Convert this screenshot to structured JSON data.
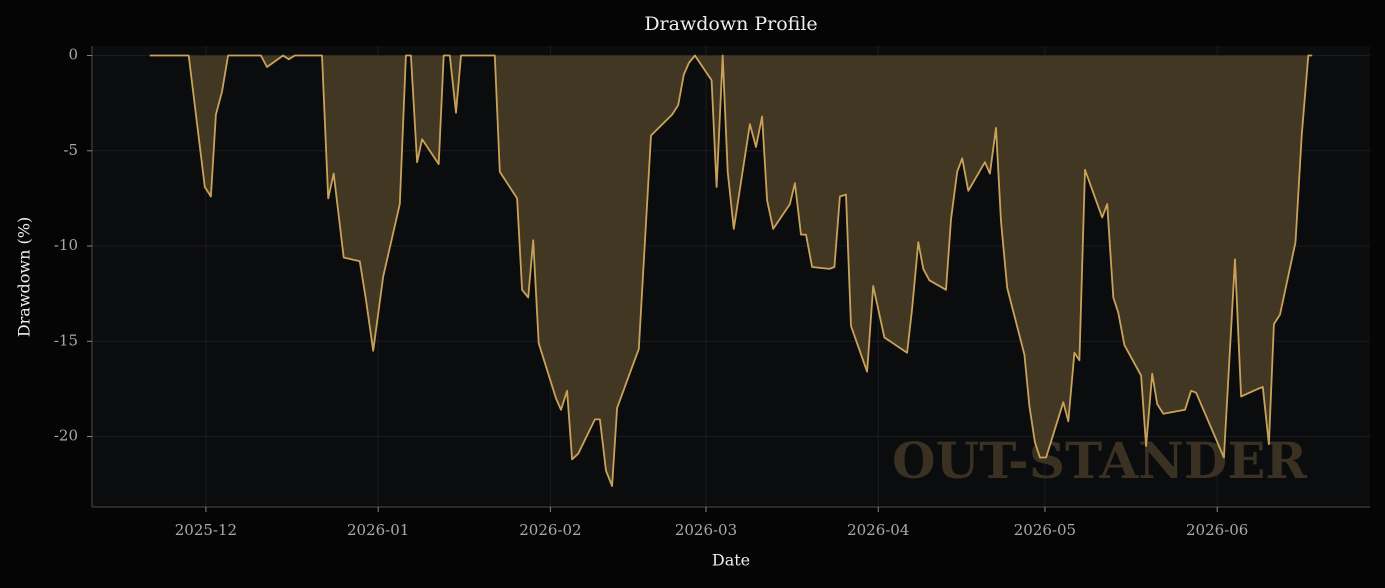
{
  "chart_data": {
    "type": "area",
    "title": "Drawdown Profile",
    "xlabel": "Date",
    "ylabel": "Drawdown (%)",
    "watermark": "OUT-STANDER",
    "color": "#c9a25a",
    "fill_color": "#463a25",
    "grid": true,
    "xlim": [
      -20.5,
      209.5
    ],
    "xticks": [
      {
        "value": 0,
        "label": "2025-12"
      },
      {
        "value": 31,
        "label": "2026-01"
      },
      {
        "value": 62,
        "label": "2026-02"
      },
      {
        "value": 90,
        "label": "2026-03"
      },
      {
        "value": 121,
        "label": "2026-04"
      },
      {
        "value": 151,
        "label": "2026-05"
      },
      {
        "value": 182,
        "label": "2026-06"
      }
    ],
    "ylim": [
      -23.7,
      0.5
    ],
    "yticks": [
      0,
      -5,
      -10,
      -15,
      -20
    ],
    "x": [
      -10.1,
      -3.1,
      -0.2,
      0.9,
      1.8,
      2.9,
      4.0,
      9.9,
      11.0,
      13.9,
      14.9,
      16.0,
      20.9,
      22.0,
      23.0,
      24.8,
      27.7,
      28.8,
      30.1,
      31.9,
      34.9,
      36.0,
      36.9,
      38.0,
      38.9,
      41.9,
      42.8,
      43.9,
      45.0,
      45.9,
      52.0,
      52.9,
      56.0,
      56.9,
      58.0,
      58.9,
      59.9,
      63.0,
      63.9,
      65.0,
      65.9,
      67.0,
      70.0,
      70.9,
      72.0,
      73.1,
      74.0,
      77.9,
      80.1,
      83.9,
      85.0,
      86.0,
      86.9,
      88.0,
      91.0,
      91.9,
      93.0,
      93.9,
      95.0,
      97.9,
      99.0,
      100.1,
      101.0,
      102.1,
      105.1,
      106.0,
      107.1,
      108.0,
      109.1,
      112.2,
      113.1,
      114.1,
      115.2,
      116.1,
      119.0,
      120.1,
      122.1,
      126.2,
      127.1,
      128.2,
      129.1,
      130.2,
      133.2,
      134.1,
      135.2,
      136.1,
      137.2,
      140.2,
      141.1,
      142.2,
      143.1,
      144.2,
      147.3,
      148.2,
      149.2,
      150.1,
      151.2,
      154.3,
      155.2,
      156.3,
      157.2,
      158.2,
      161.3,
      162.2,
      163.3,
      164.2,
      165.3,
      168.3,
      169.2,
      170.3,
      171.2,
      172.3,
      176.2,
      177.3,
      178.2,
      183.2,
      185.2,
      186.3,
      189.3,
      190.2,
      191.3,
      192.2,
      193.3,
      196.1,
      197.2,
      198.4,
      199.1
    ],
    "values": [
      0,
      0,
      -6.9,
      -7.4,
      -3.1,
      -1.9,
      0,
      0,
      -0.6,
      0,
      -0.2,
      0,
      0,
      -7.5,
      -6.2,
      -10.6,
      -10.8,
      -12.8,
      -15.5,
      -11.6,
      -7.8,
      0,
      0,
      -5.6,
      -4.4,
      -5.7,
      0,
      0,
      -3.0,
      0,
      0,
      -6.1,
      -7.5,
      -12.3,
      -12.7,
      -9.7,
      -15.1,
      -18.0,
      -18.6,
      -17.6,
      -21.2,
      -20.9,
      -19.1,
      -19.1,
      -21.8,
      -22.6,
      -18.5,
      -15.4,
      -4.2,
      -3.1,
      -2.6,
      -1.0,
      -0.4,
      0,
      -1.3,
      -6.9,
      0,
      -6.1,
      -9.1,
      -3.6,
      -4.8,
      -3.2,
      -7.6,
      -9.1,
      -7.8,
      -6.7,
      -9.4,
      -9.4,
      -11.1,
      -11.2,
      -11.1,
      -7.4,
      -7.3,
      -14.2,
      -16.6,
      -12.1,
      -14.8,
      -15.6,
      -13.3,
      -9.8,
      -11.2,
      -11.8,
      -12.3,
      -8.6,
      -6.1,
      -5.4,
      -7.1,
      -5.6,
      -6.2,
      -3.8,
      -8.7,
      -12.2,
      -15.7,
      -18.4,
      -20.3,
      -21.1,
      -21.1,
      -18.2,
      -19.2,
      -15.6,
      -16.0,
      -6.0,
      -8.5,
      -7.8,
      -12.7,
      -13.5,
      -15.2,
      -16.8,
      -20.5,
      -16.7,
      -18.3,
      -18.8,
      -18.6,
      -17.6,
      -17.7,
      -21.1,
      -10.7,
      -17.9,
      -17.5,
      -17.4,
      -20.4,
      -14.1,
      -13.6,
      -9.8,
      -4.2,
      0,
      0
    ]
  }
}
